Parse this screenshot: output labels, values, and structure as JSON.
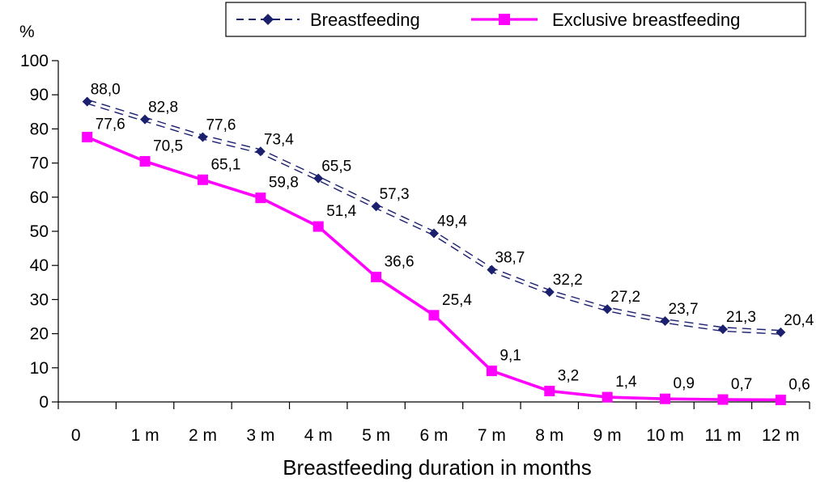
{
  "chart_data": {
    "type": "line",
    "title": "",
    "xlabel": "Breastfeeding duration in months",
    "ylabel": "%",
    "categories": [
      "0",
      "1 m",
      "2 m",
      "3 m",
      "4 m",
      "5 m",
      "6 m",
      "7 m",
      "8 m",
      "9 m",
      "10 m",
      "11 m",
      "12 m"
    ],
    "ylim": [
      0,
      100
    ],
    "yticks": [
      "0",
      "10",
      "20",
      "30",
      "40",
      "50",
      "60",
      "70",
      "80",
      "90",
      "100"
    ],
    "grid": false,
    "legend_position": "top-right",
    "series": [
      {
        "name": "Breastfeeding",
        "values": [
          88.0,
          82.8,
          77.6,
          73.4,
          65.5,
          57.3,
          49.4,
          38.7,
          32.2,
          27.2,
          23.7,
          21.3,
          20.4
        ],
        "labels": [
          "88,0",
          "82,8",
          "77,6",
          "73,4",
          "65,5",
          "57,3",
          "49,4",
          "38,7",
          "32,2",
          "27,2",
          "23,7",
          "21,3",
          "20,4"
        ],
        "color": "#1a1f6e",
        "line_style": "dashed",
        "marker": "diamond"
      },
      {
        "name": "Exclusive breastfeeding",
        "values": [
          77.6,
          70.5,
          65.1,
          59.8,
          51.4,
          36.6,
          25.4,
          9.1,
          3.2,
          1.4,
          0.9,
          0.7,
          0.6
        ],
        "labels": [
          "77,6",
          "70,5",
          "65,1",
          "59,8",
          "51,4",
          "36,6",
          "25,4",
          "9,1",
          "3,2",
          "1,4",
          "0,9",
          "0,7",
          "0,6"
        ],
        "color": "#ff00ff",
        "line_style": "solid",
        "marker": "square"
      }
    ]
  }
}
